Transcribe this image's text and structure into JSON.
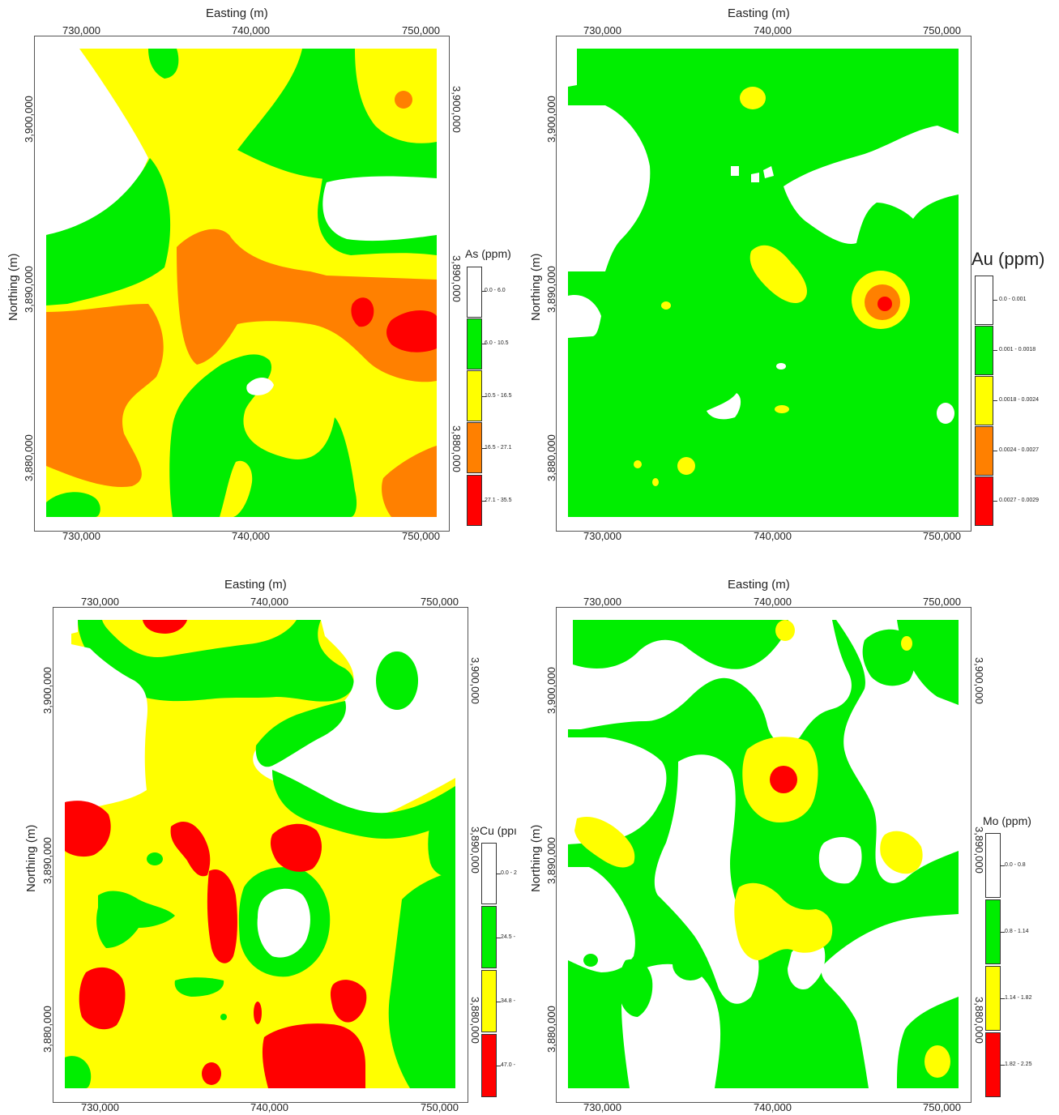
{
  "colors": {
    "white": "#ffffff",
    "green": "#00ee00",
    "yellow": "#ffff00",
    "orange": "#ff8000",
    "red": "#ff0000"
  },
  "maps": [
    {
      "id": "as",
      "x_axis_title": "Easting (m)",
      "y_axis_title": "Northing (m)",
      "x_ticks": [
        "730,000",
        "740,000",
        "750,000"
      ],
      "y_ticks": [
        "3,880,000",
        "3,890,000",
        "3,900,000"
      ],
      "legend_title": "As (ppm)",
      "legend_classes": [
        {
          "label": "0.0 - 6.0",
          "color": "#ffffff"
        },
        {
          "label": "6.0 - 10.5",
          "color": "#00ee00"
        },
        {
          "label": "10.5 - 16.5",
          "color": "#ffff00"
        },
        {
          "label": "16.5 - 27.1",
          "color": "#ff8000"
        },
        {
          "label": "27.1 - 35.5",
          "color": "#ff0000"
        }
      ]
    },
    {
      "id": "au",
      "x_axis_title": "Easting (m)",
      "y_axis_title": "Northing (m)",
      "x_ticks": [
        "730,000",
        "740,000",
        "750,000"
      ],
      "y_ticks": [
        "3,880,000",
        "3,890,000",
        "3,900,000"
      ],
      "legend_title": "Au (ppm)",
      "legend_classes": [
        {
          "label": "0.0 - 0.001",
          "color": "#ffffff"
        },
        {
          "label": "0.001 - 0.0018",
          "color": "#00ee00"
        },
        {
          "label": "0.0018 - 0.0024",
          "color": "#ffff00"
        },
        {
          "label": "0.0024 - 0.0027",
          "color": "#ff8000"
        },
        {
          "label": "0.0027 - 0.0029",
          "color": "#ff0000"
        }
      ]
    },
    {
      "id": "cu",
      "x_axis_title": "Easting (m)",
      "y_axis_title": "Northing (m)",
      "x_ticks": [
        "730,000",
        "740,000",
        "750,000"
      ],
      "y_ticks": [
        "3,880,000",
        "3,890,000",
        "3,900,000"
      ],
      "legend_title": "Cu (ppı",
      "legend_classes": [
        {
          "label": "0.0 - 2",
          "color": "#ffffff"
        },
        {
          "label": "24.5 -",
          "color": "#00ee00"
        },
        {
          "label": "34.8 -",
          "color": "#ffff00"
        },
        {
          "label": "47.0 -",
          "color": "#ff0000"
        }
      ]
    },
    {
      "id": "mo",
      "x_axis_title": "Easting (m)",
      "y_axis_title": "Northing (m)",
      "x_ticks": [
        "730,000",
        "740,000",
        "750,000"
      ],
      "y_ticks": [
        "3,880,000",
        "3,890,000",
        "3,900,000"
      ],
      "legend_title": "Mo (ppm)",
      "legend_classes": [
        {
          "label": "0.0 - 0.8",
          "color": "#ffffff"
        },
        {
          "label": "0.8 - 1.14",
          "color": "#00ee00"
        },
        {
          "label": "1.14 - 1.82",
          "color": "#ffff00"
        },
        {
          "label": "1.82 - 2.25",
          "color": "#ff0000"
        }
      ]
    }
  ]
}
